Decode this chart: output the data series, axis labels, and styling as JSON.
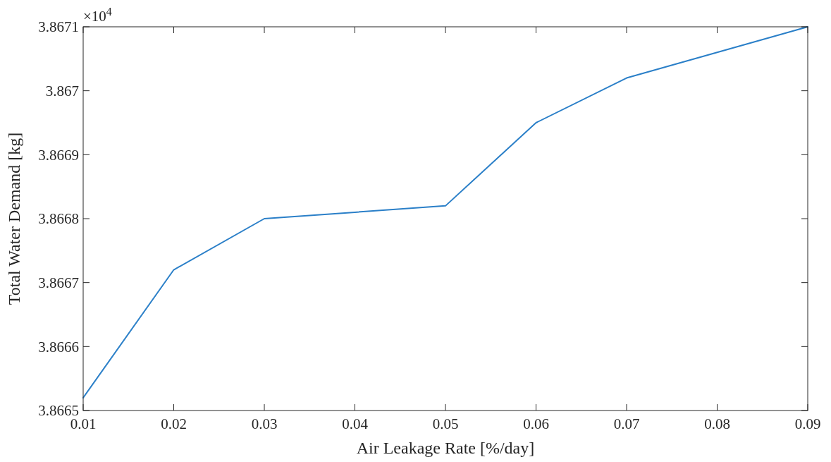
{
  "chart_data": {
    "type": "line",
    "xlabel": "Air Leakage Rate [%/day]",
    "ylabel": "Total Water Demand [kg]",
    "annotations": [
      "×10$^{4}$"
    ],
    "x": [
      0.01,
      0.02,
      0.03,
      0.04,
      0.05,
      0.06,
      0.07,
      0.08,
      0.09
    ],
    "series": [
      {
        "color": "#2a7fc8",
        "values": [
          3.86652,
          3.86672,
          3.8668,
          3.86681,
          3.86682,
          3.86695,
          3.86702,
          3.86706,
          3.8671
        ]
      }
    ],
    "xlim": [
      0.01,
      0.09
    ],
    "xticks": [
      0.01,
      0.02,
      0.03,
      0.04,
      0.05,
      0.06,
      0.07,
      0.08,
      0.09
    ],
    "ylim": [
      3.8665,
      3.8671
    ],
    "yticks": [
      3.8665,
      3.8666,
      3.8667,
      3.8668,
      3.8669,
      3.867,
      3.8671
    ],
    "grid": false,
    "marker": "none",
    "line_style": "solid"
  }
}
